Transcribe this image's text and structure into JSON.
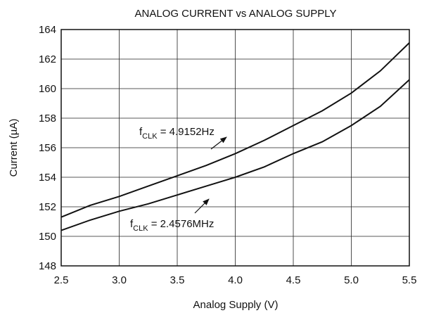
{
  "chart_data": {
    "type": "line",
    "title": "ANALOG CURRENT vs ANALOG SUPPLY",
    "x_label": "Analog Supply (V)",
    "y_label": "Current (µA)",
    "x": [
      2.5,
      2.75,
      3.0,
      3.25,
      3.5,
      3.75,
      4.0,
      4.25,
      4.5,
      4.75,
      5.0,
      5.25,
      5.5
    ],
    "series": [
      {
        "color": "#111111",
        "values": [
          151.3,
          152.1,
          152.7,
          153.4,
          154.1,
          154.8,
          155.6,
          156.5,
          157.5,
          158.5,
          159.7,
          161.2,
          163.1
        ]
      },
      {
        "color": "#111111",
        "values": [
          150.4,
          151.1,
          151.7,
          152.2,
          152.8,
          153.4,
          154.0,
          154.7,
          155.6,
          156.4,
          157.5,
          158.8,
          160.6
        ]
      }
    ],
    "annotations": [
      {
        "base": "f",
        "sub": "CLK",
        "text": " = 4.9152Hz"
      },
      {
        "base": "f",
        "sub": "CLK",
        "text": " = 2.4576MHz"
      }
    ],
    "xlim": [
      2.5,
      5.5
    ],
    "xticks": [
      2.5,
      {
        "value": 3,
        "label": "3.0"
      },
      3.5,
      {
        "value": 4,
        "label": "4.0"
      },
      4.5,
      {
        "value": 5,
        "label": "5.0"
      },
      5.5
    ],
    "ylim": [
      148,
      164
    ],
    "yticks": [
      148,
      150,
      152,
      154,
      156,
      158,
      160,
      162,
      164
    ],
    "grid": true
  }
}
